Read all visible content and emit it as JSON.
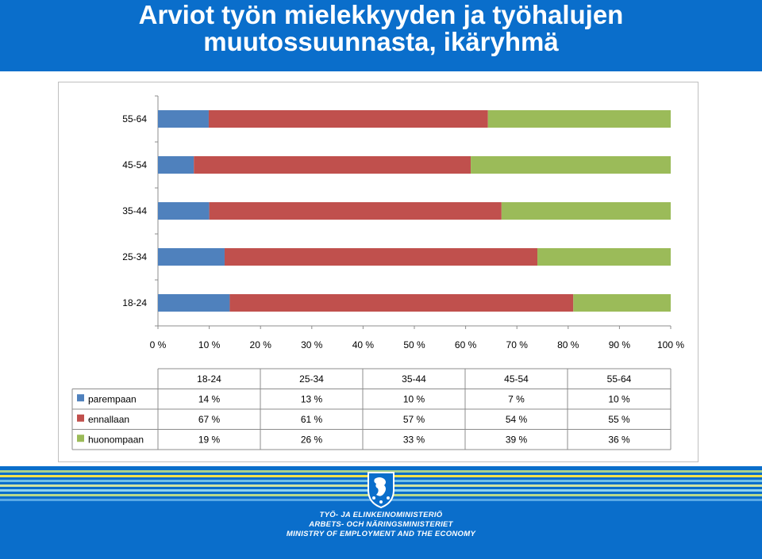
{
  "title": "Arviot työn mielekkyyden ja työhalujen muutossuunnasta, ikäryhmä",
  "title_lines": [
    "Arviot työn mielekkyyden ja työhalujen",
    "muutossuunnasta, ikäryhmä"
  ],
  "colors": {
    "header_bg": "#0a6ecb",
    "parempaan": "#4f81bd",
    "ennallaan": "#c0504d",
    "huonompaan": "#9bbb59"
  },
  "chart_data": {
    "type": "bar",
    "orientation": "horizontal",
    "stacked": "percent",
    "categories": [
      "18-24",
      "25-34",
      "35-44",
      "45-54",
      "55-64"
    ],
    "series": [
      {
        "name": "parempaan",
        "values": [
          14,
          13,
          10,
          7,
          10
        ]
      },
      {
        "name": "ennallaan",
        "values": [
          67,
          61,
          57,
          54,
          55
        ]
      },
      {
        "name": "huonompaan",
        "values": [
          19,
          26,
          33,
          39,
          36
        ]
      }
    ],
    "x_ticks": [
      "0 %",
      "10 %",
      "20 %",
      "30 %",
      "40 %",
      "50 %",
      "60 %",
      "70 %",
      "80 %",
      "90 %",
      "100 %"
    ],
    "xlim": [
      0,
      100
    ],
    "grid": false,
    "legend": "data-table-below",
    "data_table": {
      "headers": [
        "18-24",
        "25-34",
        "35-44",
        "45-54",
        "55-64"
      ],
      "rows": [
        {
          "label": "parempaan",
          "cells": [
            "14 %",
            "13 %",
            "10 %",
            "7 %",
            "10 %"
          ]
        },
        {
          "label": "ennallaan",
          "cells": [
            "67 %",
            "61 %",
            "57 %",
            "54 %",
            "55 %"
          ]
        },
        {
          "label": "huonompaan",
          "cells": [
            "19 %",
            "26 %",
            "33 %",
            "39 %",
            "36 %"
          ]
        }
      ]
    }
  },
  "footer": {
    "crest_icon": "lion-crest-icon",
    "ministry_lines": [
      "TYÖ- JA ELINKEINOMINISTERIÖ",
      "ARBETS- OCH NÄRINGSMINISTERIET",
      "MINISTRY OF EMPLOYMENT AND THE ECONOMY"
    ]
  }
}
